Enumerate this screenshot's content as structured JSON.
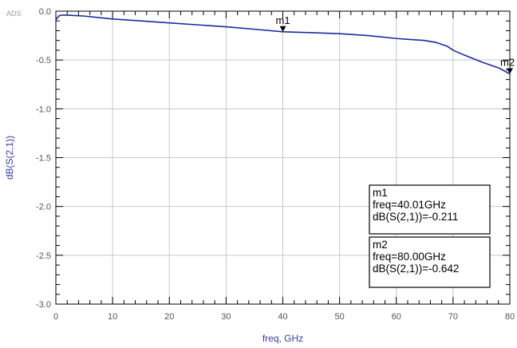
{
  "tool_label": "ADS",
  "chart_data": {
    "type": "line",
    "xlabel": "freq, GHz",
    "ylabel": "dB(S(2,1))",
    "xlim": [
      0,
      80
    ],
    "ylim": [
      -3.0,
      0.0
    ],
    "grid": true,
    "x_ticks": [
      0,
      10,
      20,
      30,
      40,
      50,
      60,
      70,
      80
    ],
    "x_tick_labels": [
      "0",
      "10",
      "20",
      "30",
      "40",
      "50",
      "60",
      "70",
      "80"
    ],
    "y_ticks": [
      0,
      -0.5,
      -1.0,
      -1.5,
      -2.0,
      -2.5,
      -3.0
    ],
    "y_tick_labels": [
      "0.0",
      "-0.5",
      "-1.0",
      "-1.5",
      "-2.0",
      "-2.5",
      "-3.0"
    ],
    "series": [
      {
        "color": "#1c2a9e",
        "x": [
          0,
          0.5,
          1,
          2,
          5,
          10,
          15,
          20,
          25,
          30,
          35,
          40,
          45,
          50,
          55,
          60,
          65,
          67,
          69,
          70,
          72,
          75,
          78,
          80
        ],
        "y": [
          -0.09,
          -0.05,
          -0.04,
          -0.04,
          -0.05,
          -0.08,
          -0.1,
          -0.12,
          -0.14,
          -0.16,
          -0.185,
          -0.211,
          -0.22,
          -0.23,
          -0.25,
          -0.28,
          -0.3,
          -0.32,
          -0.36,
          -0.4,
          -0.45,
          -0.52,
          -0.58,
          -0.642
        ]
      }
    ],
    "markers": [
      {
        "name": "m1",
        "x": 40.01,
        "y": -0.211
      },
      {
        "name": "m2",
        "x": 80.0,
        "y": -0.642
      }
    ],
    "readouts": [
      {
        "lines": [
          "m1",
          "freq=40.01GHz",
          "dB(S(2,1))=-0.211"
        ]
      },
      {
        "lines": [
          "m2",
          "freq=80.00GHz",
          "dB(S(2,1))=-0.642"
        ]
      }
    ]
  }
}
